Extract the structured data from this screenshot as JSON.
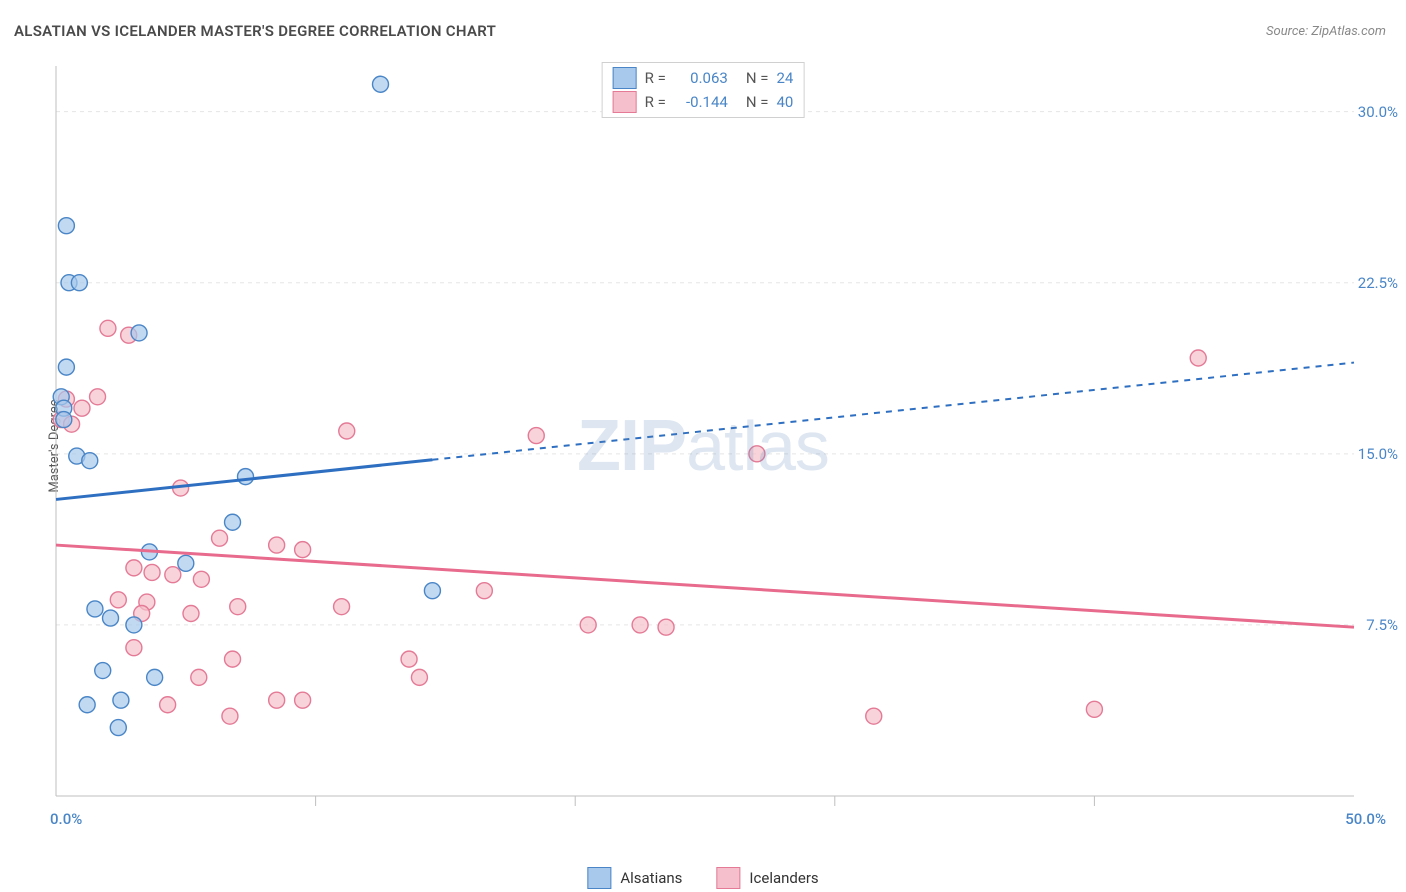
{
  "title": "ALSATIAN VS ICELANDER MASTER'S DEGREE CORRELATION CHART",
  "source": "Source: ZipAtlas.com",
  "y_axis_label": "Master's Degree",
  "watermark_bold": "ZIP",
  "watermark_light": "atlas",
  "legend_top": {
    "rows": [
      {
        "r_label": "R =",
        "r_value": "0.063",
        "n_label": "N =",
        "n_value": "24"
      },
      {
        "r_label": "R =",
        "r_value": "-0.144",
        "n_label": "N =",
        "n_value": "40"
      }
    ]
  },
  "series": {
    "alsatians": {
      "label": "Alsatians",
      "fill": "#a8c9ec",
      "stroke": "#4a86c7",
      "line": "#2e6fc1"
    },
    "icelanders": {
      "label": "Icelanders",
      "fill": "#f5c0cb",
      "stroke": "#e47a96",
      "line": "#e86a8d"
    }
  },
  "background": "#ffffff",
  "grid_color": "#e5e5e5",
  "axis_color": "#bfbfbf",
  "label_color": "#4a86c7",
  "xlim": [
    0,
    50
  ],
  "ylim": [
    0,
    32
  ],
  "x_start_label": "0.0%",
  "x_end_label": "50.0%",
  "y_gridlines": [
    7.5,
    15.0,
    22.5,
    30.0
  ],
  "y_grid_labels": [
    "7.5%",
    "15.0%",
    "22.5%",
    "30.0%"
  ],
  "x_ticks": [
    10,
    20,
    30,
    40
  ],
  "marker_radius": 8,
  "marker_opacity": 0.7,
  "trend": {
    "alsatians": {
      "y_at_x0": 13.0,
      "y_at_x50": 19.0,
      "solid_until_x": 14.5
    },
    "icelanders": {
      "y_at_x0": 11.0,
      "y_at_x50": 7.4,
      "solid_until_x": 50.0
    }
  },
  "points": {
    "alsatians": [
      [
        12.5,
        31.2
      ],
      [
        0.4,
        25.0
      ],
      [
        0.5,
        22.5
      ],
      [
        0.9,
        22.5
      ],
      [
        3.2,
        20.3
      ],
      [
        0.4,
        18.8
      ],
      [
        0.2,
        17.5
      ],
      [
        0.3,
        17.0
      ],
      [
        0.3,
        16.5
      ],
      [
        0.8,
        14.9
      ],
      [
        1.3,
        14.7
      ],
      [
        7.3,
        14.0
      ],
      [
        6.8,
        12.0
      ],
      [
        3.6,
        10.7
      ],
      [
        5.0,
        10.2
      ],
      [
        14.5,
        9.0
      ],
      [
        1.5,
        8.2
      ],
      [
        2.1,
        7.8
      ],
      [
        3.0,
        7.5
      ],
      [
        1.8,
        5.5
      ],
      [
        3.8,
        5.2
      ],
      [
        2.5,
        4.2
      ],
      [
        1.2,
        4.0
      ],
      [
        2.4,
        3.0
      ]
    ],
    "icelanders": [
      [
        2.0,
        20.5
      ],
      [
        2.8,
        20.2
      ],
      [
        44.0,
        19.2
      ],
      [
        1.6,
        17.5
      ],
      [
        0.4,
        17.4
      ],
      [
        1.0,
        17.0
      ],
      [
        0.2,
        16.5
      ],
      [
        0.6,
        16.3
      ],
      [
        11.2,
        16.0
      ],
      [
        27.0,
        15.0
      ],
      [
        18.5,
        15.8
      ],
      [
        4.8,
        13.5
      ],
      [
        6.3,
        11.3
      ],
      [
        8.5,
        11.0
      ],
      [
        9.5,
        10.8
      ],
      [
        3.0,
        10.0
      ],
      [
        3.7,
        9.8
      ],
      [
        4.5,
        9.7
      ],
      [
        5.6,
        9.5
      ],
      [
        16.5,
        9.0
      ],
      [
        2.4,
        8.6
      ],
      [
        3.5,
        8.5
      ],
      [
        7.0,
        8.3
      ],
      [
        11.0,
        8.3
      ],
      [
        3.3,
        8.0
      ],
      [
        5.2,
        8.0
      ],
      [
        20.5,
        7.5
      ],
      [
        22.5,
        7.5
      ],
      [
        23.5,
        7.4
      ],
      [
        3.0,
        6.5
      ],
      [
        6.8,
        6.0
      ],
      [
        13.6,
        6.0
      ],
      [
        5.5,
        5.2
      ],
      [
        14.0,
        5.2
      ],
      [
        8.5,
        4.2
      ],
      [
        9.5,
        4.2
      ],
      [
        4.3,
        4.0
      ],
      [
        40.0,
        3.8
      ],
      [
        31.5,
        3.5
      ],
      [
        6.7,
        3.5
      ]
    ]
  }
}
